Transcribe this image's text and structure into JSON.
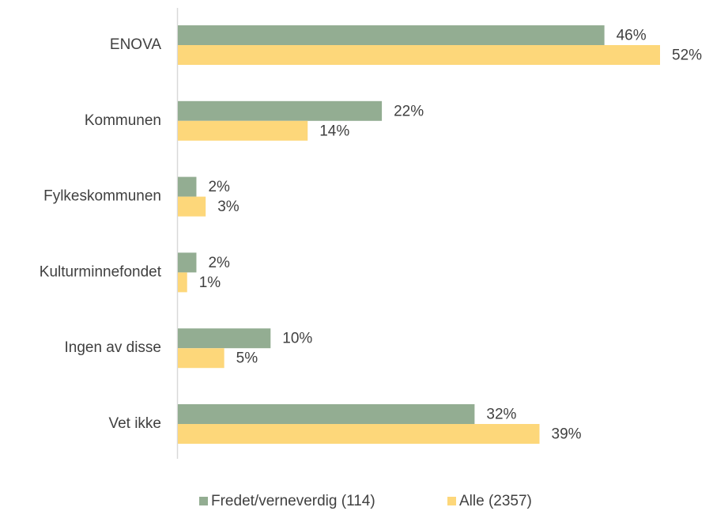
{
  "chart_data": {
    "type": "bar",
    "orientation": "horizontal",
    "categories": [
      "ENOVA",
      "Kommunen",
      "Fylkeskommunen",
      "Kulturminnefondet",
      "Ingen av disse",
      "Vet ikke"
    ],
    "series": [
      {
        "name": "Fredet/verneverdig (114)",
        "color": "#93ad92",
        "values": [
          46,
          22,
          2,
          2,
          10,
          32
        ],
        "value_labels": [
          "46%",
          "22%",
          "2%",
          "2%",
          "10%",
          "32%"
        ]
      },
      {
        "name": "Alle (2357)",
        "color": "#fdd77a",
        "values": [
          52,
          14,
          3,
          1,
          5,
          39
        ],
        "value_labels": [
          "52%",
          "14%",
          "3%",
          "1%",
          "5%",
          "39%"
        ]
      }
    ],
    "legend": "bottom"
  }
}
